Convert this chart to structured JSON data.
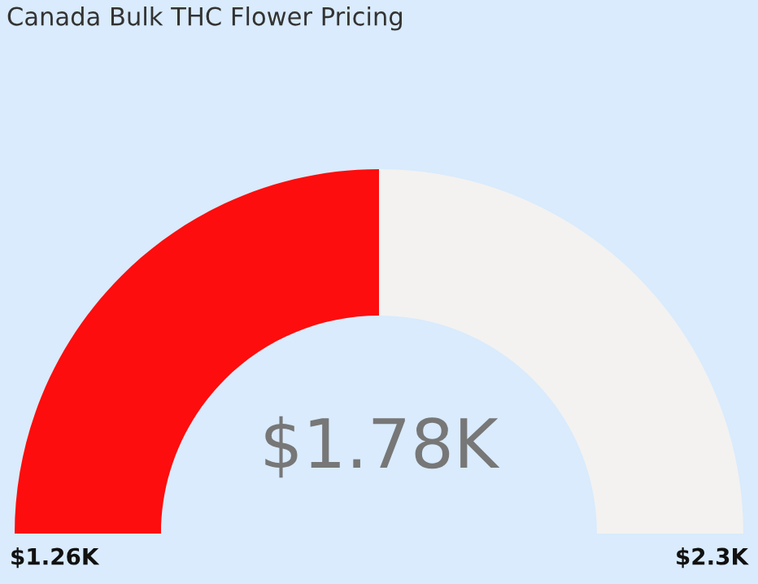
{
  "chart_data": {
    "type": "donut",
    "title": "Canada Bulk THC Flower Pricing",
    "categories": [
      null,
      null
    ],
    "values": [
      50,
      50
    ],
    "colors": [
      "#fd0d0d",
      "#f3f2f1"
    ],
    "annotations": [
      "$1.78K",
      "$1.26K",
      "$2.3K"
    ]
  }
}
